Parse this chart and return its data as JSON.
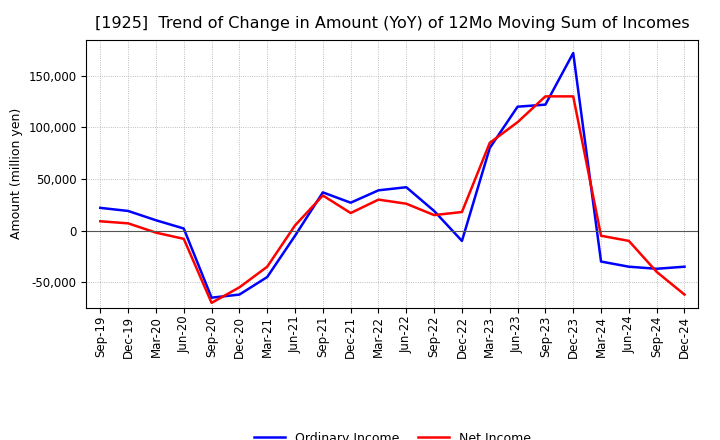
{
  "title": "[1925]  Trend of Change in Amount (YoY) of 12Mo Moving Sum of Incomes",
  "ylabel": "Amount (million yen)",
  "x_labels": [
    "Sep-19",
    "Dec-19",
    "Mar-20",
    "Jun-20",
    "Sep-20",
    "Dec-20",
    "Mar-21",
    "Jun-21",
    "Sep-21",
    "Dec-21",
    "Mar-22",
    "Jun-22",
    "Sep-22",
    "Dec-22",
    "Mar-23",
    "Jun-23",
    "Sep-23",
    "Dec-23",
    "Mar-24",
    "Jun-24",
    "Sep-24",
    "Dec-24"
  ],
  "ordinary_income": [
    22000,
    19000,
    10000,
    2000,
    -65000,
    -62000,
    -45000,
    -5000,
    37000,
    27000,
    39000,
    42000,
    19000,
    -10000,
    80000,
    120000,
    122000,
    172000,
    -30000,
    -35000,
    -37000,
    -35000
  ],
  "net_income": [
    9000,
    7000,
    -2000,
    -8000,
    -70000,
    -55000,
    -35000,
    5000,
    34000,
    17000,
    30000,
    26000,
    15000,
    18000,
    85000,
    105000,
    130000,
    130000,
    -5000,
    -10000,
    -40000,
    -62000
  ],
  "ordinary_color": "#0000ff",
  "net_color": "#ff0000",
  "ylim": [
    -75000,
    185000
  ],
  "yticks": [
    -50000,
    0,
    50000,
    100000,
    150000
  ],
  "background_color": "#ffffff",
  "grid_color": "#aaaaaa",
  "legend_labels": [
    "Ordinary Income",
    "Net Income"
  ],
  "zero_line_color": "#555555",
  "title_fontsize": 11.5,
  "axis_fontsize": 8.5,
  "label_fontsize": 9,
  "legend_fontsize": 9,
  "line_width": 1.8
}
